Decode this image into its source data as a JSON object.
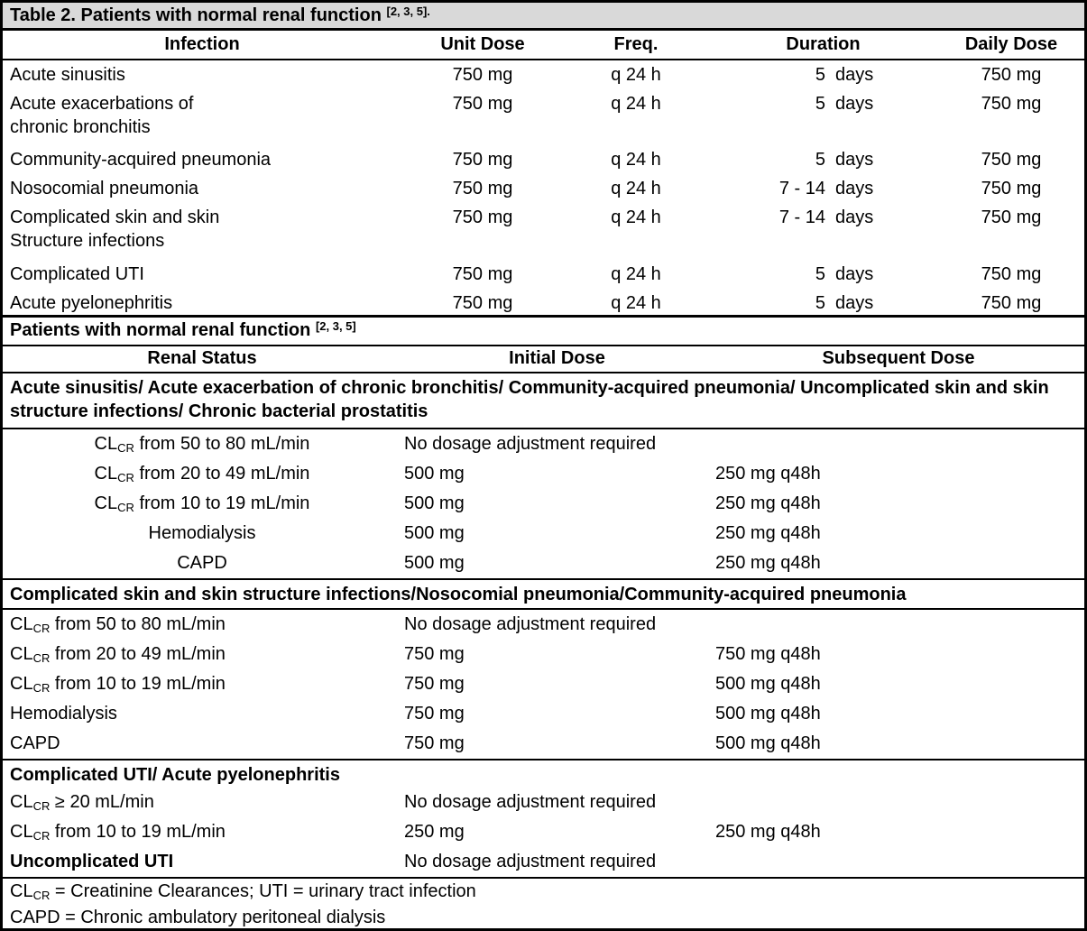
{
  "colors": {
    "title_band": "#d9d9d9",
    "border": "#000000",
    "text": "#000000"
  },
  "title": {
    "text": "Table 2. Patients with normal renal function ",
    "superscript": "[2, 3, 5]."
  },
  "dose_table": {
    "columns": {
      "infection": "Infection",
      "unit_dose": "Unit Dose",
      "freq": "Freq.",
      "duration": "Duration",
      "daily_dose": "Daily Dose"
    },
    "rows": [
      {
        "infection": "Acute sinusitis",
        "unit_dose": "750 mg",
        "freq": "q 24 h",
        "duration_value": "5",
        "duration_unit": "days",
        "daily_dose": "750 mg"
      },
      {
        "infection": "Acute exacerbations of\nchronic bronchitis",
        "unit_dose": "750 mg",
        "freq": "q 24 h",
        "duration_value": "5",
        "duration_unit": "days",
        "daily_dose": "750 mg"
      },
      {
        "infection": "Community-acquired pneumonia",
        "unit_dose": "750 mg",
        "freq": "q 24 h",
        "duration_value": "5",
        "duration_unit": "days",
        "daily_dose": "750 mg"
      },
      {
        "infection": "Nosocomial pneumonia",
        "unit_dose": "750 mg",
        "freq": "q 24 h",
        "duration_value": "7 - 14",
        "duration_unit": "days",
        "daily_dose": "750 mg"
      },
      {
        "infection": "Complicated skin and skin\nStructure infections",
        "unit_dose": "750 mg",
        "freq": "q 24 h",
        "duration_value": "7 - 14",
        "duration_unit": "days",
        "daily_dose": "750 mg"
      },
      {
        "infection": "Complicated UTI",
        "unit_dose": "750 mg",
        "freq": "q 24 h",
        "duration_value": "5",
        "duration_unit": "days",
        "daily_dose": "750 mg"
      },
      {
        "infection": "Acute pyelonephritis",
        "unit_dose": "750 mg",
        "freq": "q 24 h",
        "duration_value": "5",
        "duration_unit": "days",
        "daily_dose": "750 mg"
      }
    ]
  },
  "renal": {
    "header": {
      "text": "Patients with normal renal function ",
      "superscript": "[2, 3, 5]"
    },
    "columns": {
      "status": "Renal Status",
      "initial": "Initial Dose",
      "subsequent": "Subsequent Dose"
    },
    "groups": [
      {
        "title": "Acute sinusitis/ Acute exacerbation of chronic bronchitis/ Community-acquired pneumonia/ Uncomplicated skin and skin structure infections/ Chronic bacterial prostatitis",
        "rows": [
          {
            "status_prefix": "CL",
            "status_sub": "CR",
            "status_rest": " from 50 to 80 mL/min",
            "initial": "No dosage adjustment required",
            "subsequent": ""
          },
          {
            "status_prefix": "CL",
            "status_sub": "CR",
            "status_rest": " from 20 to 49 mL/min",
            "initial": "500 mg",
            "subsequent": "250 mg q48h"
          },
          {
            "status_prefix": "CL",
            "status_sub": "CR",
            "status_rest": " from 10 to 19 mL/min",
            "initial": "500 mg",
            "subsequent": "250 mg q48h"
          },
          {
            "status_prefix": "Hemodialysis",
            "status_sub": "",
            "status_rest": "",
            "initial": "500 mg",
            "subsequent": "250 mg q48h"
          },
          {
            "status_prefix": "CAPD",
            "status_sub": "",
            "status_rest": "",
            "initial": "500 mg",
            "subsequent": "250 mg q48h"
          }
        ]
      },
      {
        "title": "Complicated skin and skin structure infections/Nosocomial pneumonia/Community-acquired pneumonia",
        "rows": [
          {
            "status_prefix": "CL",
            "status_sub": "CR",
            "status_rest": " from 50 to 80 mL/min",
            "initial": "No dosage adjustment required",
            "subsequent": ""
          },
          {
            "status_prefix": "CL",
            "status_sub": "CR",
            "status_rest": " from 20 to 49 mL/min",
            "initial": "750 mg",
            "subsequent": "750 mg q48h"
          },
          {
            "status_prefix": "CL",
            "status_sub": "CR",
            "status_rest": " from 10 to 19 mL/min",
            "initial": "750 mg",
            "subsequent": "500 mg q48h"
          },
          {
            "status_prefix": "Hemodialysis",
            "status_sub": "",
            "status_rest": "",
            "initial": "750 mg",
            "subsequent": "500 mg q48h"
          },
          {
            "status_prefix": "CAPD",
            "status_sub": "",
            "status_rest": "",
            "initial": "750 mg",
            "subsequent": "500 mg q48h"
          }
        ]
      },
      {
        "title": "Complicated UTI/ Acute pyelonephritis",
        "rows": [
          {
            "status_prefix": "CL",
            "status_sub": "CR",
            "status_rest": " ≥ 20 mL/min",
            "initial": "No dosage adjustment required",
            "subsequent": ""
          },
          {
            "status_prefix": "CL",
            "status_sub": "CR",
            "status_rest": " from 10 to 19 mL/min",
            "initial": "250 mg",
            "subsequent": "250 mg q48h"
          }
        ]
      }
    ],
    "uncomplicated": {
      "label": "Uncomplicated UTI",
      "initial": "No dosage adjustment required"
    }
  },
  "footnotes": {
    "line1": {
      "prefix": "CL",
      "sub": "CR",
      "rest": " = Creatinine Clearances; UTI = urinary tract infection"
    },
    "line2": "CAPD = Chronic ambulatory peritoneal dialysis"
  }
}
